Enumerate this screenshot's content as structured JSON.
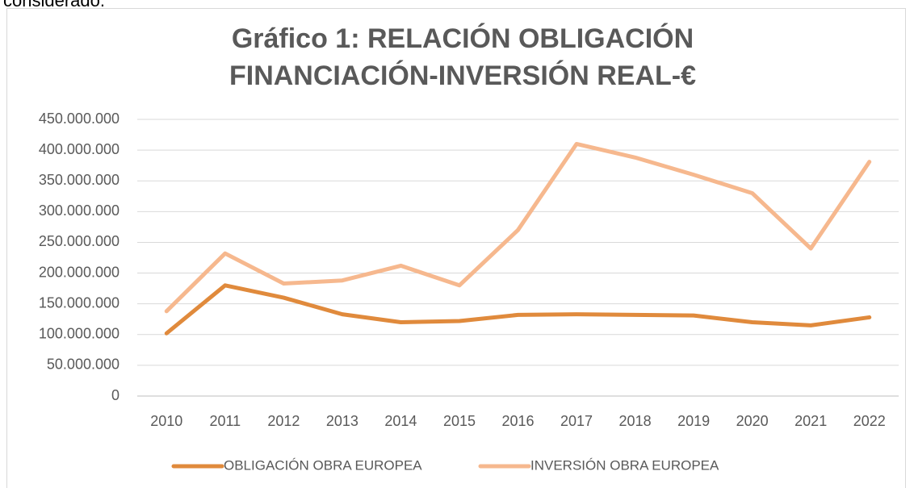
{
  "page_text": "considerado.",
  "chart_data": {
    "type": "line",
    "title": [
      "Gráfico 1: RELACIÓN OBLIGACIÓN",
      "FINANCIACIÓN-INVERSIÓN REAL-€"
    ],
    "categories": [
      "2010",
      "2011",
      "2012",
      "2013",
      "2014",
      "2015",
      "2016",
      "2017",
      "2018",
      "2019",
      "2020",
      "2021",
      "2022"
    ],
    "series": [
      {
        "name": "OBLIGACIÓN OBRA EUROPEA",
        "color": "#e08a3c",
        "values": [
          102000000,
          180000000,
          160000000,
          133000000,
          120000000,
          122000000,
          132000000,
          133000000,
          132000000,
          131000000,
          120000000,
          115000000,
          128000000
        ]
      },
      {
        "name": "INVERSIÓN OBRA EUROPEA",
        "color": "#f6b88e",
        "values": [
          138000000,
          232000000,
          183000000,
          188000000,
          212000000,
          180000000,
          270000000,
          410000000,
          388000000,
          360000000,
          330000000,
          240000000,
          381000000
        ]
      }
    ],
    "ylim": [
      0,
      450000000
    ],
    "yticks": [
      0,
      {
        "value": 50000000,
        "label": "50.000.000"
      },
      {
        "value": 100000000,
        "label": "100.000.000"
      },
      {
        "value": 150000000,
        "label": "150.000.000"
      },
      {
        "value": 200000000,
        "label": "200.000.000"
      },
      {
        "value": 250000000,
        "label": "250.000.000"
      },
      {
        "value": 300000000,
        "label": "300.000.000"
      },
      {
        "value": 350000000,
        "label": "350.000.000"
      },
      {
        "value": 400000000,
        "label": "400.000.000"
      },
      {
        "value": 450000000,
        "label": "450.000.000"
      }
    ],
    "grid": true,
    "legend": "bottom"
  }
}
